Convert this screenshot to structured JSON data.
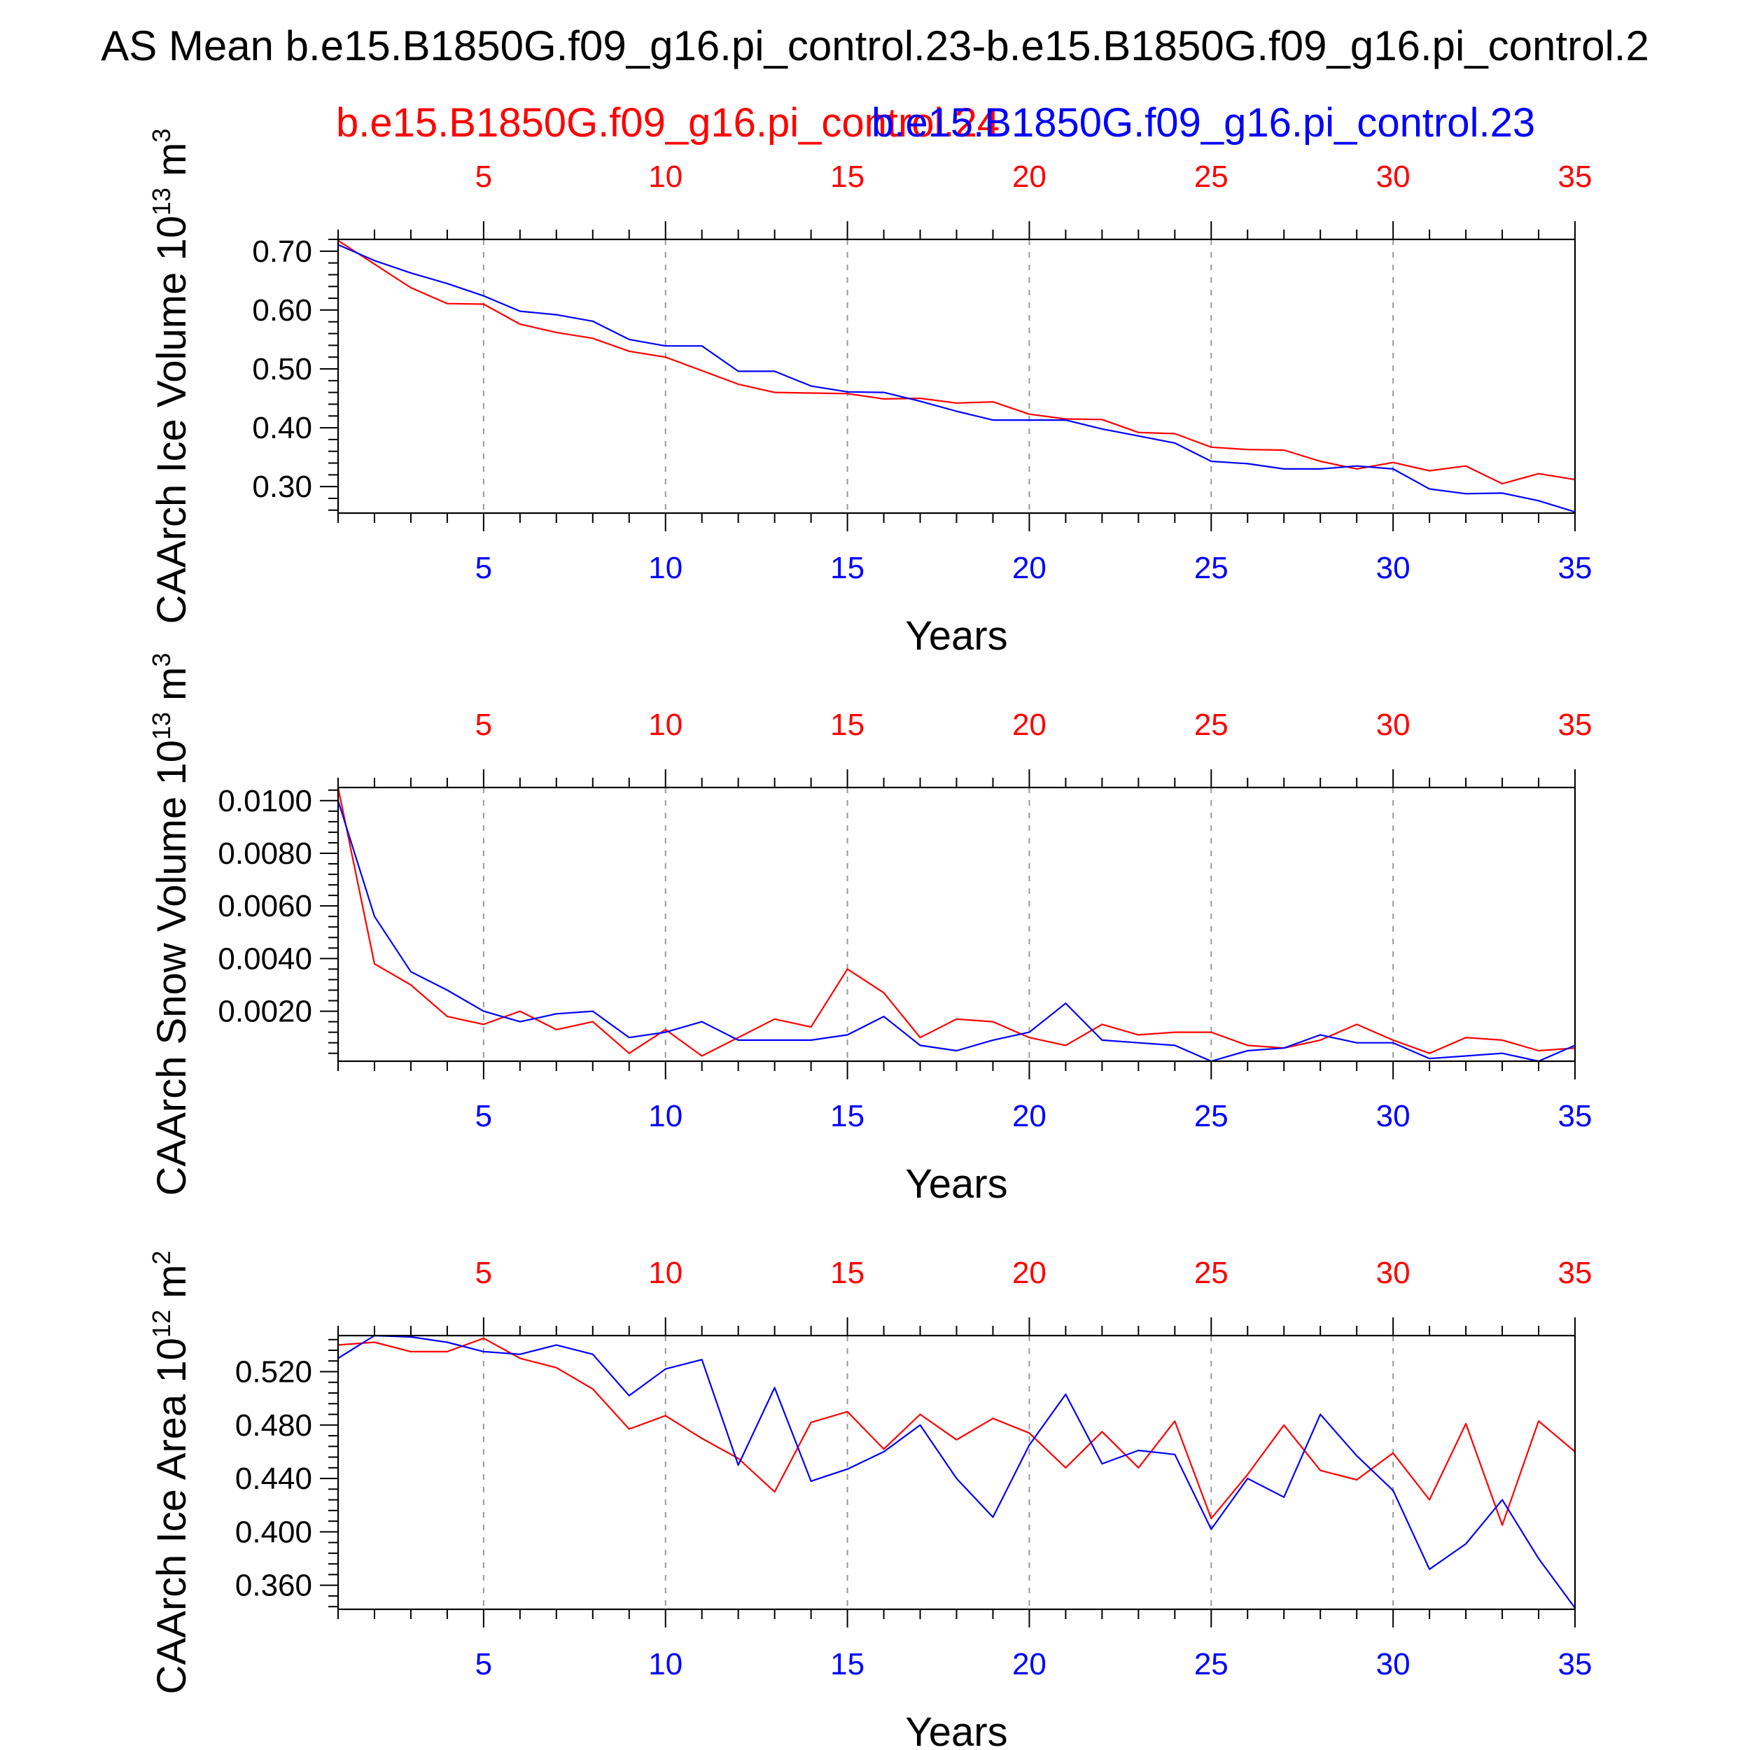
{
  "figure": {
    "title": "AS Mean b.e15.B1850G.f09_g16.pi_control.23-b.e15.B1850G.f09_g16.pi_control.2"
  },
  "legend": {
    "red_label": "b.e15.B1850G.f09_g16.pi_control.24",
    "blue_label": "b.e15.B1850G.f09_g16.pi_control.23"
  },
  "colors": {
    "red": "#ff0000",
    "blue": "#0000ff",
    "axis": "#000000",
    "grid": "#999999"
  },
  "chart_data": [
    {
      "type": "line",
      "ylabel_base": "CAArch Ice Volume 10",
      "ylabel_exp": "13",
      "ylabel_unit": " m",
      "ylabel_unit_exp": "3",
      "xlabel": "Years",
      "xlim": [
        1,
        35
      ],
      "ylim": [
        0.255,
        0.72
      ],
      "xticks": [
        5,
        10,
        15,
        20,
        25,
        30,
        35
      ],
      "yticks": [
        0.3,
        0.4,
        0.5,
        0.6,
        0.7
      ],
      "ytick_labels": [
        "0.30",
        "0.40",
        "0.50",
        "0.60",
        "0.70"
      ],
      "ytick_minor": 0.02,
      "x": [
        1,
        2,
        3,
        4,
        5,
        6,
        7,
        8,
        9,
        10,
        11,
        12,
        13,
        14,
        15,
        16,
        17,
        18,
        19,
        20,
        21,
        22,
        23,
        24,
        25,
        26,
        27,
        28,
        29,
        30,
        31,
        32,
        33,
        34,
        35
      ],
      "series": [
        {
          "name": "b.e15.B1850G.f09_g16.pi_control.24",
          "color": "#ff0000",
          "values": [
            0.718,
            0.678,
            0.638,
            0.611,
            0.61,
            0.576,
            0.562,
            0.552,
            0.53,
            0.52,
            0.497,
            0.474,
            0.46,
            0.459,
            0.458,
            0.449,
            0.45,
            0.442,
            0.444,
            0.423,
            0.415,
            0.414,
            0.392,
            0.39,
            0.367,
            0.363,
            0.362,
            0.343,
            0.33,
            0.341,
            0.327,
            0.335,
            0.305,
            0.322,
            0.312
          ]
        },
        {
          "name": "b.e15.B1850G.f09_g16.pi_control.23",
          "color": "#0000ff",
          "values": [
            0.711,
            0.684,
            0.663,
            0.645,
            0.624,
            0.598,
            0.592,
            0.581,
            0.55,
            0.539,
            0.539,
            0.496,
            0.496,
            0.471,
            0.461,
            0.46,
            0.445,
            0.428,
            0.413,
            0.413,
            0.413,
            0.398,
            0.386,
            0.374,
            0.343,
            0.339,
            0.33,
            0.33,
            0.335,
            0.33,
            0.296,
            0.288,
            0.289,
            0.276,
            0.257
          ]
        }
      ]
    },
    {
      "type": "line",
      "ylabel_base": "CAArch Snow Volume 10",
      "ylabel_exp": "13",
      "ylabel_unit": " m",
      "ylabel_unit_exp": "3",
      "xlabel": "Years",
      "xlim": [
        1,
        35
      ],
      "ylim": [
        0.0001,
        0.0105
      ],
      "xticks": [
        5,
        10,
        15,
        20,
        25,
        30,
        35
      ],
      "yticks": [
        0.002,
        0.004,
        0.006,
        0.008,
        0.01
      ],
      "ytick_labels": [
        "0.0020",
        "0.0040",
        "0.0060",
        "0.0080",
        "0.0100"
      ],
      "ytick_minor": 0.0004,
      "x": [
        1,
        2,
        3,
        4,
        5,
        6,
        7,
        8,
        9,
        10,
        11,
        12,
        13,
        14,
        15,
        16,
        17,
        18,
        19,
        20,
        21,
        22,
        23,
        24,
        25,
        26,
        27,
        28,
        29,
        30,
        31,
        32,
        33,
        34,
        35
      ],
      "series": [
        {
          "name": "b.e15.B1850G.f09_g16.pi_control.24",
          "color": "#ff0000",
          "values": [
            0.0105,
            0.0038,
            0.003,
            0.0018,
            0.0015,
            0.002,
            0.0013,
            0.0016,
            0.0004,
            0.0013,
            0.0003,
            0.001,
            0.0017,
            0.0014,
            0.0036,
            0.0027,
            0.001,
            0.0017,
            0.0016,
            0.001,
            0.0007,
            0.0015,
            0.0011,
            0.0012,
            0.0012,
            0.0007,
            0.0006,
            0.0009,
            0.0015,
            0.0009,
            0.0004,
            0.001,
            0.0009,
            0.0005,
            0.0006
          ]
        },
        {
          "name": "b.e15.B1850G.f09_g16.pi_control.23",
          "color": "#0000ff",
          "values": [
            0.01,
            0.0056,
            0.0035,
            0.0028,
            0.002,
            0.0016,
            0.0019,
            0.002,
            0.001,
            0.0012,
            0.0016,
            0.0009,
            0.0009,
            0.0009,
            0.0011,
            0.0018,
            0.0007,
            0.0005,
            0.0009,
            0.0012,
            0.0023,
            0.0009,
            0.0008,
            0.0007,
            0.0001,
            0.0005,
            0.0006,
            0.0011,
            0.0008,
            0.0008,
            0.0002,
            0.0003,
            0.0004,
            0.0001,
            0.0007
          ]
        }
      ]
    },
    {
      "type": "line",
      "ylabel_base": "CAArch Ice Area 10",
      "ylabel_exp": "12",
      "ylabel_unit": " m",
      "ylabel_unit_exp": "2",
      "xlabel": "Years",
      "xlim": [
        1,
        35
      ],
      "ylim": [
        0.342,
        0.547
      ],
      "xticks": [
        5,
        10,
        15,
        20,
        25,
        30,
        35
      ],
      "yticks": [
        0.36,
        0.4,
        0.44,
        0.48,
        0.52
      ],
      "ytick_labels": [
        "0.360",
        "0.400",
        "0.440",
        "0.480",
        "0.520"
      ],
      "ytick_minor": 0.008,
      "x": [
        1,
        2,
        3,
        4,
        5,
        6,
        7,
        8,
        9,
        10,
        11,
        12,
        13,
        14,
        15,
        16,
        17,
        18,
        19,
        20,
        21,
        22,
        23,
        24,
        25,
        26,
        27,
        28,
        29,
        30,
        31,
        32,
        33,
        34,
        35
      ],
      "series": [
        {
          "name": "b.e15.B1850G.f09_g16.pi_control.24",
          "color": "#ff0000",
          "values": [
            0.54,
            0.542,
            0.535,
            0.535,
            0.545,
            0.53,
            0.523,
            0.507,
            0.477,
            0.487,
            0.47,
            0.455,
            0.43,
            0.482,
            0.49,
            0.462,
            0.488,
            0.469,
            0.485,
            0.474,
            0.448,
            0.475,
            0.448,
            0.483,
            0.41,
            0.443,
            0.48,
            0.446,
            0.439,
            0.459,
            0.424,
            0.481,
            0.405,
            0.483,
            0.46
          ]
        },
        {
          "name": "b.e15.B1850G.f09_g16.pi_control.23",
          "color": "#0000ff",
          "values": [
            0.53,
            0.547,
            0.546,
            0.542,
            0.535,
            0.533,
            0.54,
            0.533,
            0.502,
            0.522,
            0.529,
            0.45,
            0.508,
            0.438,
            0.447,
            0.46,
            0.48,
            0.44,
            0.411,
            0.465,
            0.503,
            0.451,
            0.461,
            0.458,
            0.402,
            0.44,
            0.426,
            0.488,
            0.457,
            0.431,
            0.372,
            0.391,
            0.424,
            0.38,
            0.343
          ]
        }
      ]
    }
  ]
}
